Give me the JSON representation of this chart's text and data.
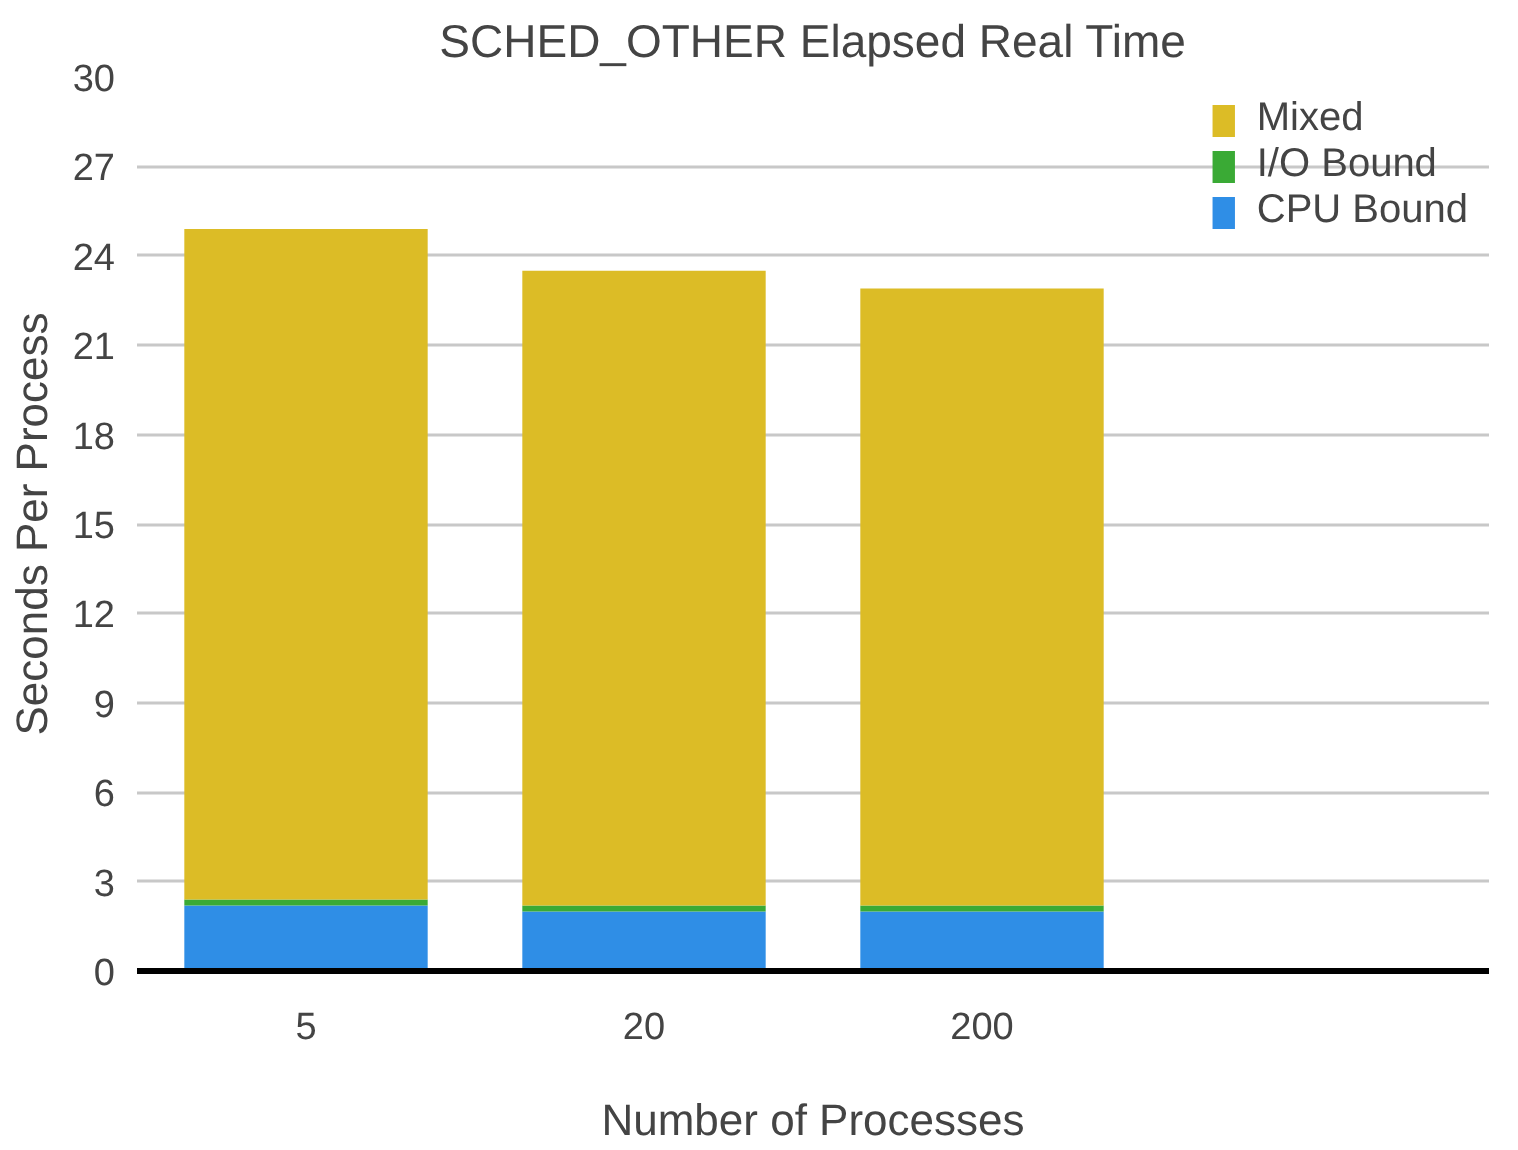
{
  "chart_data": {
    "type": "bar",
    "title": "SCHED_OTHER Elapsed Real Time",
    "xlabel": "Number of Processes",
    "ylabel": "Seconds Per Process",
    "categories": [
      "5",
      "20",
      "200"
    ],
    "stacked": true,
    "series": [
      {
        "name": "CPU Bound",
        "color": "#2f8ee6",
        "values": [
          2.2,
          2.0,
          2.0
        ]
      },
      {
        "name": "I/O Bound",
        "color": "#3aaa35",
        "values": [
          0.2,
          0.2,
          0.2
        ]
      },
      {
        "name": "Mixed",
        "color": "#dcbc26",
        "values": [
          22.5,
          21.3,
          20.7
        ]
      }
    ],
    "ylim": [
      0,
      30
    ],
    "yticks": [
      0,
      3,
      6,
      9,
      12,
      15,
      18,
      21,
      24,
      27,
      30
    ],
    "grid": "y",
    "legend": "top right"
  }
}
